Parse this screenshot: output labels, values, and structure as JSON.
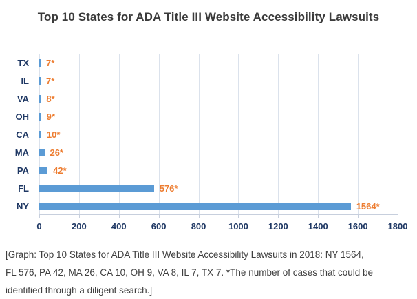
{
  "chart_data": {
    "type": "bar",
    "orientation": "horizontal",
    "title": "Top 10 States for ADA Title III Website Accessibility Lawsuits",
    "categories": [
      "TX",
      "IL",
      "VA",
      "OH",
      "CA",
      "MA",
      "PA",
      "FL",
      "NY"
    ],
    "values": [
      7,
      7,
      8,
      9,
      10,
      26,
      42,
      576,
      1564
    ],
    "value_labels": [
      "7*",
      "7*",
      "8*",
      "9*",
      "10*",
      "26*",
      "42*",
      "576*",
      "1564*"
    ],
    "xlabel": "",
    "ylabel": "",
    "xlim": [
      0,
      1800
    ],
    "x_ticks": [
      0,
      200,
      400,
      600,
      800,
      1000,
      1200,
      1400,
      1600,
      1800
    ],
    "grid": true,
    "legend": "none",
    "colors": {
      "bar": "#5B9BD5",
      "value_label": "#ED7D31",
      "category_label": "#1F3864",
      "axis_label": "#1F3864",
      "gridline": "#dbe2ec",
      "title_text": "#3b3b3b"
    }
  },
  "caption": {
    "lines": [
      "[Graph: Top 10 States for ADA Title III Website Accessibility Lawsuits in 2018: NY 1564,",
      "FL 576, PA 42, MA 26, CA 10, OH 9, VA 8, IL 7, TX 7. *The number of cases that could be",
      "identified through a diligent search.]"
    ]
  }
}
